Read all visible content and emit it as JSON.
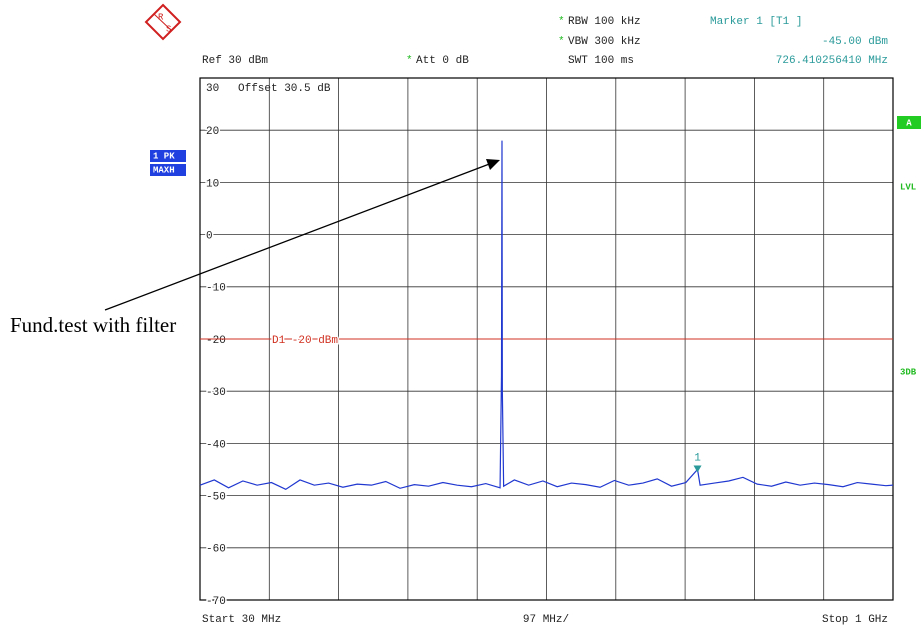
{
  "chart_data": {
    "type": "line",
    "logo": [
      "R",
      "S"
    ],
    "flag": "*",
    "header": {
      "ref": "Ref   30 dBm",
      "att": "Att   0 dB",
      "rbw": "RBW  100 kHz",
      "vbw": "VBW  300 kHz",
      "swt": "SWT  100 ms",
      "marker_title": "Marker 1 [T1 ]",
      "marker_level": "-45.00 dBm",
      "marker_freq": "726.410256410 MHz"
    },
    "offset": "Offset    30.5 dB",
    "trace_mode": [
      "1 PK",
      "MAXH"
    ],
    "side_labels": [
      "A",
      "LVL",
      "3DB"
    ],
    "footer": {
      "start": "Start  30 MHz",
      "span": "97 MHz/",
      "stop": "Stop  1 GHz"
    },
    "annotation": "Fund.test with filter",
    "display_line": {
      "value": -20,
      "label": "D1  -20 dBm"
    },
    "marker": {
      "label": "1",
      "x": 726.4,
      "y": -45
    },
    "xlim": [
      30,
      1000
    ],
    "xticks": [
      30,
      127,
      224,
      321,
      418,
      515,
      612,
      709,
      806,
      903,
      1000
    ],
    "ylim": [
      -70,
      30
    ],
    "yticks": [
      30,
      20,
      10,
      0,
      -10,
      -20,
      -30,
      -40,
      -50,
      -60,
      -70
    ],
    "grid": true,
    "series": [
      {
        "color": "#2038d0",
        "x": [
          30,
          50,
          70,
          90,
          110,
          130,
          150,
          170,
          190,
          210,
          230,
          250,
          270,
          290,
          310,
          330,
          350,
          370,
          390,
          410,
          430,
          450,
          452,
          452.7,
          453.2,
          455,
          470,
          490,
          510,
          530,
          550,
          570,
          590,
          610,
          630,
          650,
          670,
          690,
          710,
          726.4,
          730,
          750,
          770,
          790,
          810,
          830,
          850,
          870,
          890,
          910,
          930,
          950,
          970,
          990,
          1000
        ],
        "values": [
          -48,
          -47,
          -48.5,
          -47.2,
          -48,
          -47.5,
          -48.8,
          -47,
          -48,
          -47.6,
          -48.4,
          -47.8,
          -48,
          -47.3,
          -48.6,
          -47.9,
          -48.2,
          -47.5,
          -48,
          -48.3,
          -47.7,
          -48.5,
          -27,
          18,
          -30,
          -48.2,
          -47,
          -48,
          -47.2,
          -48.3,
          -47.6,
          -47.9,
          -48.4,
          -47.1,
          -48,
          -47.6,
          -46.8,
          -48.2,
          -47.5,
          -45,
          -48,
          -47.6,
          -47.2,
          -46.5,
          -47.8,
          -48.2,
          -47.4,
          -48,
          -47.6,
          -47.9,
          -48.3,
          -47.5,
          -47.8,
          -48.1,
          -48
        ]
      }
    ]
  }
}
